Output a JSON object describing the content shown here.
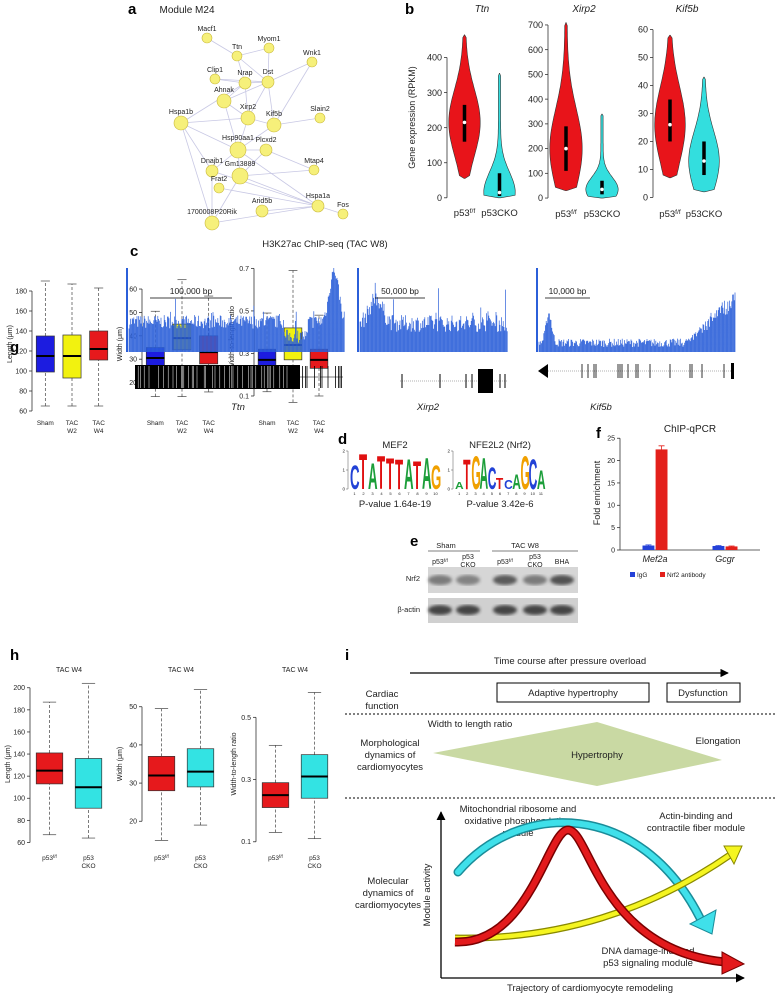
{
  "panel_labels": [
    "a",
    "b",
    "c",
    "d",
    "e",
    "f",
    "g",
    "h",
    "i"
  ],
  "network": {
    "title": "Module M24",
    "nodes": [
      "Macf1",
      "Ttn",
      "Myom1",
      "Wnk1",
      "Clip1",
      "Nrap",
      "Dst",
      "Ahnak",
      "Xirp2",
      "Kif5b",
      "Slain2",
      "Hspa1b",
      "Hsp90aa1",
      "Plcxd2",
      "Dnajb1",
      "Gm13889",
      "Mtap4",
      "Frat2",
      "Hspa1a",
      "Arid5b",
      "1700008P20Rik",
      "Fos"
    ]
  },
  "chart_data": [
    {
      "type": "violin",
      "title": "Ttn",
      "ylabel": "Gene expression (RPKM)",
      "categories": [
        {
          "base": "p53",
          "sup": "f/f"
        },
        "p53CKO"
      ],
      "colors": [
        "#e8141a",
        "#33dede"
      ],
      "stats": [
        {
          "min": 55,
          "q1": 160,
          "median": 215,
          "q3": 265,
          "max": 465
        },
        {
          "min": 0,
          "q1": 5,
          "median": 15,
          "q3": 70,
          "max": 355
        }
      ],
      "ylim": [
        -12,
        470
      ],
      "yticks": [
        0,
        100,
        200,
        300,
        400
      ]
    },
    {
      "type": "violin",
      "title": "Xirp2",
      "categories": [
        {
          "base": "p53",
          "sup": "f/f"
        },
        "p53CKO"
      ],
      "colors": [
        "#e8141a",
        "#33dede"
      ],
      "stats": [
        {
          "min": 30,
          "q1": 110,
          "median": 200,
          "q3": 290,
          "max": 710
        },
        {
          "min": 0,
          "q1": 15,
          "median": 35,
          "q3": 70,
          "max": 340
        }
      ],
      "ylim": [
        -20,
        720
      ],
      "yticks": [
        0,
        100,
        200,
        300,
        400,
        500,
        600,
        700
      ]
    },
    {
      "type": "violin",
      "title": "Kif5b",
      "categories": [
        {
          "base": "p53",
          "sup": "f/f"
        },
        "p53CKO"
      ],
      "colors": [
        "#e8141a",
        "#33dede"
      ],
      "stats": [
        {
          "min": 7,
          "q1": 20,
          "median": 26,
          "q3": 35,
          "max": 58
        },
        {
          "min": 2,
          "q1": 8,
          "median": 13,
          "q3": 20,
          "max": 43
        }
      ],
      "ylim": [
        -2,
        62
      ],
      "yticks": [
        0,
        10,
        20,
        30,
        40,
        50,
        60
      ]
    },
    {
      "type": "bar",
      "title": "ChIP-qPCR",
      "ylabel": "Fold enrichment",
      "categories": [
        "Mef2a",
        "Gcgr"
      ],
      "series": [
        {
          "name": "IgG",
          "color": "#2441d8",
          "values": [
            1.0,
            0.9
          ],
          "errors": [
            0.15,
            0.1
          ]
        },
        {
          "name": "Nrf2 antibody",
          "color": "#e3201b",
          "values": [
            22.5,
            0.8
          ],
          "errors": [
            0.8,
            0.1
          ]
        }
      ],
      "ylim": [
        0,
        25.5
      ],
      "yticks": [
        0,
        5,
        10,
        15,
        20,
        25
      ],
      "legend": "bottom"
    },
    {
      "type": "box",
      "ylabel": "Length (μm)",
      "categories": [
        "Sham",
        [
          "TAC",
          "W2"
        ],
        [
          "TAC",
          "W4"
        ]
      ],
      "colors": [
        "#1c1ce0",
        "#f2f20f",
        "#e6191c"
      ],
      "boxes": [
        {
          "min": 65,
          "q1": 99,
          "median": 115,
          "q3": 135,
          "max": 190
        },
        {
          "min": 65,
          "q1": 93,
          "median": 115,
          "q3": 136,
          "max": 187
        },
        {
          "min": 65,
          "q1": 111,
          "median": 122,
          "q3": 140,
          "max": 183
        }
      ],
      "ylim": [
        58,
        196
      ],
      "yticks": [
        60,
        80,
        100,
        120,
        140,
        160,
        180
      ]
    },
    {
      "type": "box",
      "ylabel": "Width (μm)",
      "categories": [
        "Sham",
        [
          "TAC",
          "W2"
        ],
        [
          "TAC",
          "W4"
        ]
      ],
      "colors": [
        "#1c1ce0",
        "#f2f20f",
        "#e6191c"
      ],
      "boxes": [
        {
          "min": 14,
          "q1": 26,
          "median": 30.5,
          "q3": 35,
          "max": 50.5
        },
        {
          "min": 14,
          "q1": 34,
          "median": 39,
          "q3": 45,
          "max": 64
        },
        {
          "min": 16,
          "q1": 28,
          "median": 33,
          "q3": 40,
          "max": 57
        }
      ],
      "ylim": [
        7,
        66
      ],
      "yticks": [
        20,
        30,
        40,
        50,
        60
      ]
    },
    {
      "type": "box",
      "ylabel": "Width-to-length ratio",
      "categories": [
        "Sham",
        [
          "TAC",
          "W2"
        ],
        [
          "TAC",
          "W4"
        ]
      ],
      "colors": [
        "#1c1ce0",
        "#f2f20f",
        "#e6191c"
      ],
      "boxes": [
        {
          "min": 0.12,
          "q1": 0.22,
          "median": 0.27,
          "q3": 0.32,
          "max": 0.49
        },
        {
          "min": 0.07,
          "q1": 0.27,
          "median": 0.34,
          "q3": 0.42,
          "max": 0.69
        },
        {
          "min": 0.1,
          "q1": 0.23,
          "median": 0.27,
          "q3": 0.32,
          "max": 0.48
        }
      ],
      "ylim": [
        0.02,
        0.73
      ],
      "yticks": [
        0.1,
        0.3,
        0.5,
        0.7
      ]
    },
    {
      "type": "box",
      "title": "TAC W4",
      "ylabel": "Length (μm)",
      "categories": [
        {
          "base": "p53",
          "sup": "f/f"
        },
        [
          "p53",
          "CKO"
        ]
      ],
      "colors": [
        "#e6191c",
        "#33e3e3"
      ],
      "boxes": [
        {
          "min": 67,
          "q1": 113,
          "median": 125,
          "q3": 141,
          "max": 187
        },
        {
          "min": 64,
          "q1": 91,
          "median": 110,
          "q3": 136,
          "max": 204
        }
      ],
      "ylim": [
        55,
        207
      ],
      "yticks": [
        60,
        80,
        100,
        120,
        140,
        160,
        180,
        200
      ]
    },
    {
      "type": "box",
      "title": "TAC W4",
      "ylabel": "Width (μm)",
      "categories": [
        {
          "base": "p53",
          "sup": "f/f"
        },
        [
          "p53",
          "CKO"
        ]
      ],
      "colors": [
        "#e6191c",
        "#33e3e3"
      ],
      "boxes": [
        {
          "min": 15,
          "q1": 28,
          "median": 32,
          "q3": 37,
          "max": 49.5
        },
        {
          "min": 19,
          "q1": 29,
          "median": 33,
          "q3": 39,
          "max": 54.5
        }
      ],
      "ylim": [
        13,
        57
      ],
      "yticks": [
        20,
        30,
        40,
        50
      ]
    },
    {
      "type": "box",
      "title": "TAC W4",
      "ylabel": "Width-to-length ratio",
      "categories": [
        {
          "base": "p53",
          "sup": "f/f"
        },
        [
          "p53",
          "CKO"
        ]
      ],
      "colors": [
        "#e6191c",
        "#33e3e3"
      ],
      "boxes": [
        {
          "min": 0.13,
          "q1": 0.21,
          "median": 0.25,
          "q3": 0.29,
          "max": 0.41
        },
        {
          "min": 0.11,
          "q1": 0.24,
          "median": 0.31,
          "q3": 0.38,
          "max": 0.58
        }
      ],
      "ylim": [
        0.08,
        0.62
      ],
      "yticks": [
        0.1,
        0.3,
        0.5
      ]
    }
  ],
  "chipseq": {
    "title": "H3K27ac ChIP-seq (TAC W8)",
    "tracks": [
      {
        "scale": "100,000 bp",
        "gene": "Ttn"
      },
      {
        "scale": "50,000 bp",
        "gene": "Xirp2"
      },
      {
        "scale": "10,000 bp",
        "gene": "Kif5b"
      }
    ]
  },
  "motifs": [
    {
      "name": "MEF2",
      "letters": [
        "C",
        "T",
        "A",
        "T",
        "T",
        "T",
        "A",
        "T",
        "A",
        "G"
      ],
      "heights": [
        1.3,
        1.9,
        1.4,
        1.8,
        1.7,
        1.6,
        1.6,
        1.5,
        1.7,
        1.3
      ],
      "positions": [
        1,
        2,
        3,
        4,
        5,
        6,
        7,
        8,
        9,
        10
      ],
      "yticks": [
        0,
        1,
        2
      ],
      "pvalue": "P-value 1.64e-19"
    },
    {
      "name": "NFE2L2 (Nrf2)",
      "letters": [
        "A",
        "T",
        "G",
        "A",
        "C",
        "T",
        "C",
        "A",
        "G",
        "C",
        "A"
      ],
      "heights": [
        0.4,
        1.6,
        1.8,
        1.7,
        1.2,
        0.6,
        0.5,
        0.8,
        1.8,
        1.6,
        1.0
      ],
      "positions": [
        1,
        2,
        3,
        4,
        5,
        6,
        7,
        8,
        9,
        10,
        11
      ],
      "yticks": [
        0,
        1,
        2
      ],
      "pvalue": "P-value 3.42e-6"
    }
  ],
  "blot": {
    "groups": [
      "Sham",
      "TAC W8"
    ],
    "lanes": [
      {
        "base": "p53",
        "sup": "f/f"
      },
      [
        "p53",
        "CKO"
      ],
      {
        "base": "p53",
        "sup": "f/f"
      },
      [
        "p53",
        "CKO"
      ],
      "BHA"
    ],
    "rows": [
      "Nrf2",
      "β-actin"
    ]
  },
  "model": {
    "time_axis": "Time course after pressure overload",
    "cardiac_function": [
      "Cardiac",
      "function"
    ],
    "stage1": "Adaptive hypertrophy",
    "stage2": "Dysfunction",
    "ratio": "Width to length ratio",
    "morphological": [
      "Morphological",
      "dynamics of",
      "cardiomyocytes"
    ],
    "hypertrophy": "Hypertrophy",
    "elongation": "Elongation",
    "molecular": [
      "Molecular",
      "dynamics of",
      "cardiomyocytes"
    ],
    "module_activity": "Module activity",
    "mito": [
      "Mitochondrial ribosome and",
      "oxidative phosphorylation",
      "module"
    ],
    "actin": [
      "Actin-binding and",
      "contractile fiber module"
    ],
    "p53": [
      "DNA damage-induced",
      "p53 signaling module"
    ],
    "trajectory": "Trajectory of cardiomyocyte remodeling"
  }
}
